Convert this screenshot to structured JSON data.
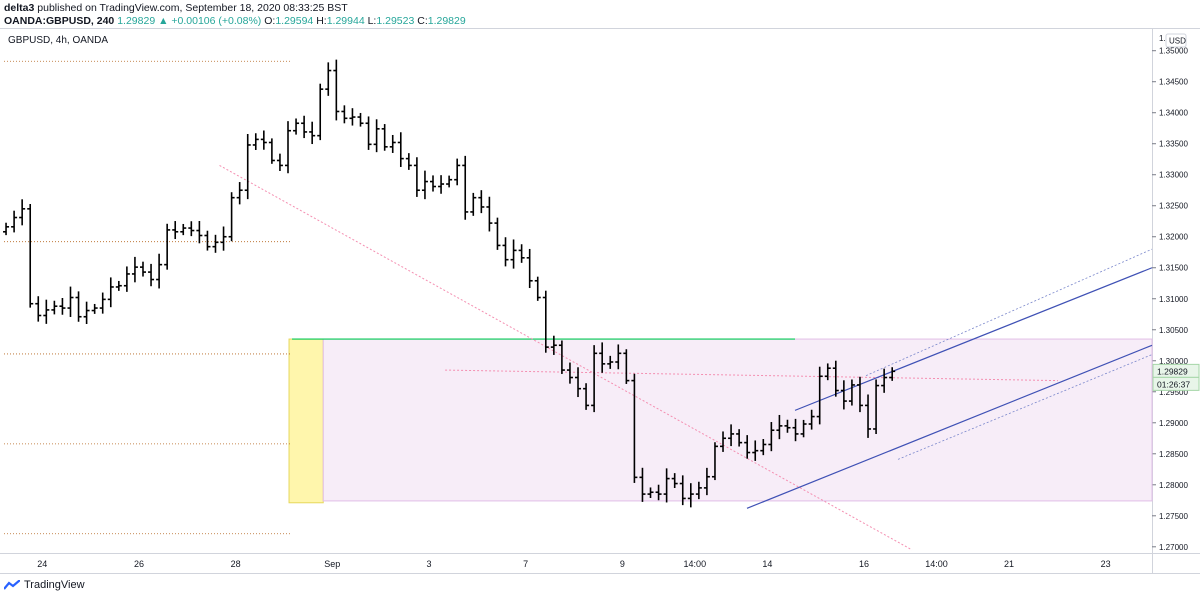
{
  "header": {
    "publisher": "delta3",
    "published_text": "published on TradingView.com, September 18, 2020 08:33:25 BST",
    "symbol": "OANDA:GBPUSD, 240",
    "change": "1.29829 ▲ +0.00106 (+0.08%)",
    "ohlc": {
      "o_label": "O:",
      "o": "1.29594",
      "h_label": "H:",
      "h": "1.29944",
      "l_label": "L:",
      "l": "1.29523",
      "c_label": "C:",
      "c": "1.29829"
    }
  },
  "footer": {
    "brand": "TradingView",
    "logo_icon": "tradingview-logo-icon"
  },
  "chart_data": {
    "type": "ohlc-bar",
    "title": "GBPUSD, 4h, OANDA",
    "currency_button": "USD",
    "price_axis": {
      "ylim": [
        1.269,
        1.3535
      ],
      "tick_labels": [
        "1.35000",
        "1.34500",
        "1.34000",
        "1.33500",
        "1.33000",
        "1.32500",
        "1.32000",
        "1.31500",
        "1.31000",
        "1.30500",
        "1.30000",
        "1.29500",
        "1.29000",
        "1.28500",
        "1.28000",
        "1.27500",
        "1.27000"
      ],
      "tick_values": [
        1.35,
        1.345,
        1.34,
        1.335,
        1.33,
        1.325,
        1.32,
        1.315,
        1.31,
        1.305,
        1.3,
        1.295,
        1.29,
        1.285,
        1.28,
        1.275,
        1.27
      ],
      "top_label_partial": "1.3",
      "last_price_label": "1.29829",
      "countdown_label": "01:26:37",
      "last_price": 1.29829
    },
    "time_axis": {
      "labels": [
        "24",
        "26",
        "28",
        "Sep",
        "3",
        "7",
        "9",
        "14:00",
        "14",
        "16",
        "14:00",
        "21",
        "23"
      ],
      "bar_index": [
        10,
        34,
        58,
        82,
        106,
        130,
        154,
        172,
        190,
        214,
        232,
        250,
        274
      ]
    },
    "bars_total_slots": 286,
    "close_series": [
      1.3216,
      1.3231,
      1.3245,
      1.3092,
      1.3073,
      1.3082,
      1.3088,
      1.3085,
      1.3102,
      1.3071,
      1.3081,
      1.3085,
      1.3099,
      1.3119,
      1.3121,
      1.314,
      1.3151,
      1.3143,
      1.3131,
      1.3155,
      1.3211,
      1.3208,
      1.3214,
      1.321,
      1.3202,
      1.3184,
      1.3191,
      1.32,
      1.3263,
      1.3275,
      1.3348,
      1.3357,
      1.3352,
      1.3323,
      1.3315,
      1.3371,
      1.3383,
      1.3369,
      1.3363,
      1.3438,
      1.3468,
      1.3402,
      1.3391,
      1.3393,
      1.3383,
      1.3349,
      1.3374,
      1.3345,
      1.3352,
      1.3326,
      1.3315,
      1.3275,
      1.3289,
      1.3281,
      1.3285,
      1.3292,
      1.3315,
      1.324,
      1.3263,
      1.3248,
      1.3222,
      1.3186,
      1.3163,
      1.3178,
      1.3166,
      1.3129,
      1.3102,
      1.3022,
      1.3025,
      1.2985,
      1.2973,
      1.2955,
      1.2928,
      1.3012,
      1.2995,
      1.2998,
      1.3012,
      1.2968,
      1.2812,
      1.2785,
      1.2788,
      1.2785,
      1.281,
      1.2802,
      1.2778,
      1.2785,
      1.2795,
      1.2813,
      1.2862,
      1.2875,
      1.2882,
      1.2868,
      1.2852,
      1.2855,
      1.2865,
      1.2888,
      1.2895,
      1.2892,
      1.2882,
      1.2898,
      1.291,
      1.2975,
      1.2988,
      1.2952,
      1.2935,
      1.2961,
      1.2928,
      1.289,
      1.296,
      1.2973,
      1.2983
    ],
    "drawings": {
      "horizontal_levels_dotted": [
        1.3483,
        1.3192,
        1.3011,
        1.2866,
        1.2721
      ],
      "resistance_green": 1.3035,
      "yellow_zone": {
        "from_price": 1.3035,
        "to_price": 1.2771
      },
      "pink_range_box": {
        "from_price": 1.3035,
        "to_price": 1.2774
      },
      "ascending_channel": {
        "upper": [
          1.292,
          1.315
        ],
        "lower": [
          1.2762,
          1.3025
        ]
      }
    }
  }
}
